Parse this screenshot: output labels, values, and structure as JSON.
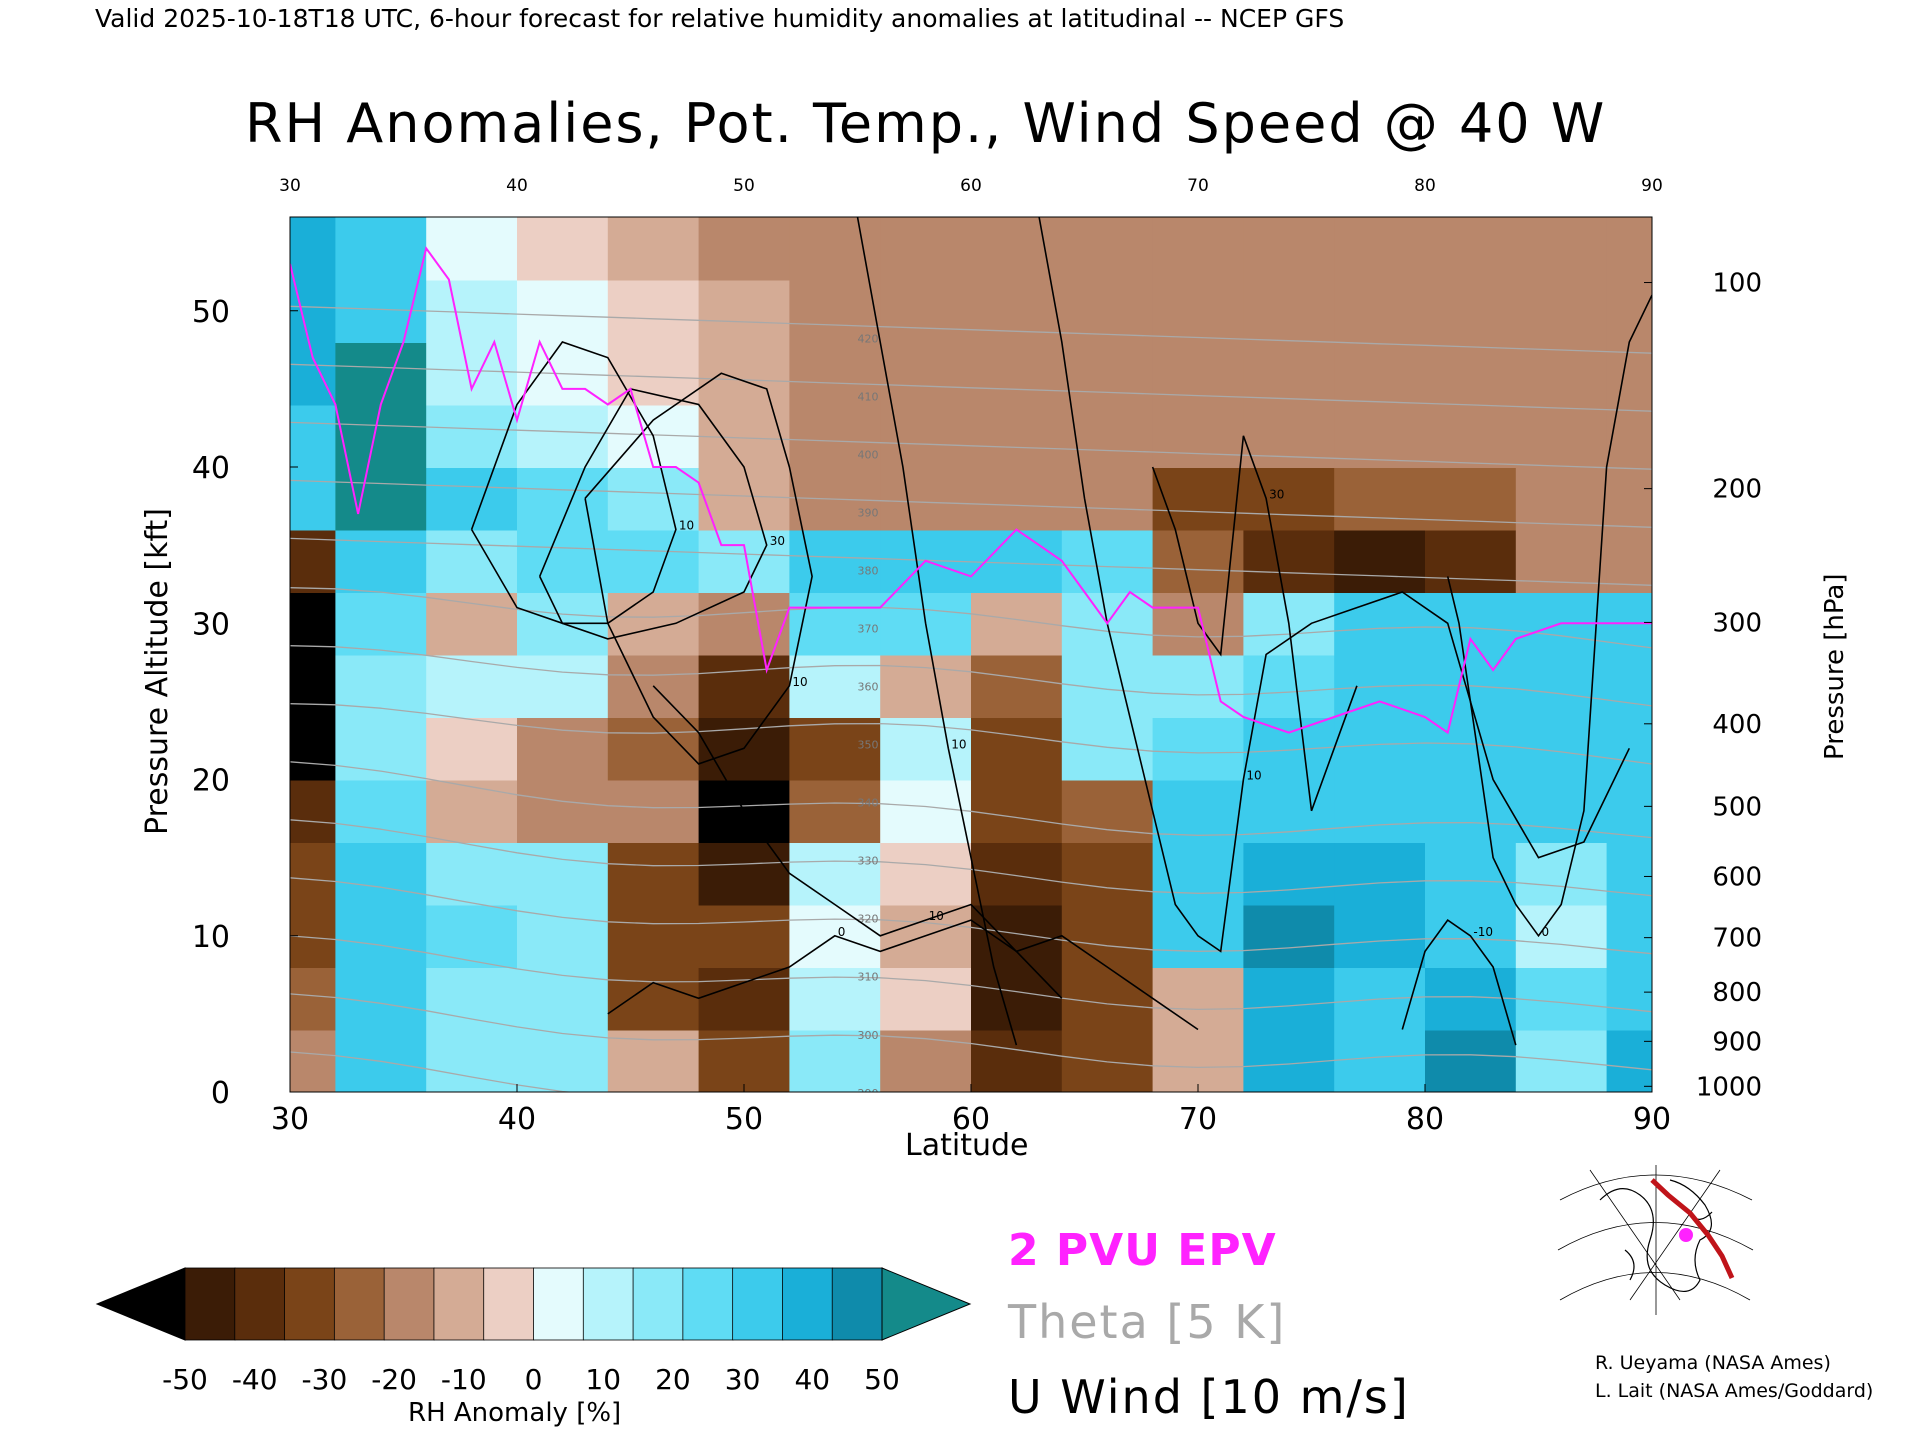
{
  "header": "Valid 2025-10-18T18 UTC, 6-hour forecast for relative humidity anomalies at latitudinal -- NCEP GFS",
  "colors": {
    "epv": "#ff22ff",
    "theta": "#a9a9a9",
    "wind": "#000000",
    "rh_scale": [
      "#000000",
      "#3b1c06",
      "#5a2d0c",
      "#7a4418",
      "#9a6238",
      "#b9876b",
      "#d4ab95",
      "#eccfc4",
      "#e4fbfd",
      "#b6f3fb",
      "#8ae9f8",
      "#5fdcf4",
      "#3ccbec",
      "#1aafd8",
      "#0f8bab",
      "#148a8a"
    ]
  },
  "chart_data": {
    "type": "heatmap",
    "title": "RH Anomalies, Pot. Temp., Wind Speed @ 40 W",
    "xlabel": "Latitude",
    "ylabel": "Pressure Altitude [kft]",
    "ylabel_right": "Pressure [hPa]",
    "xlim": [
      30,
      90
    ],
    "ylim": [
      0,
      56
    ],
    "x_ticks": [
      "30",
      "40",
      "50",
      "60",
      "70",
      "80",
      "90"
    ],
    "x_tick_values": [
      30,
      40,
      50,
      60,
      70,
      80,
      90
    ],
    "y_ticks": [
      "0",
      "10",
      "20",
      "30",
      "40",
      "50"
    ],
    "y_tick_values": [
      0,
      10,
      20,
      30,
      40,
      50
    ],
    "pressure_ticks": [
      "1000",
      "900",
      "800",
      "700",
      "600",
      "500",
      "400",
      "300",
      "200",
      "100"
    ],
    "pressure_tick_values": [
      1000,
      900,
      800,
      700,
      600,
      500,
      400,
      300,
      200,
      100
    ],
    "rh_anomaly_grid": {
      "lat": [
        30,
        34,
        38,
        42,
        46,
        50,
        54,
        58,
        62,
        66,
        70,
        74,
        78,
        82,
        86,
        90
      ],
      "kft": [
        2,
        6,
        10,
        14,
        18,
        22,
        26,
        30,
        34,
        38,
        42,
        46,
        50,
        54
      ],
      "values": [
        [
          -20,
          30,
          20,
          15,
          -10,
          -30,
          15,
          -15,
          -40,
          -30,
          -10,
          40,
          30,
          45,
          20,
          40
        ],
        [
          -25,
          30,
          20,
          15,
          -35,
          -40,
          10,
          -5,
          -45,
          -35,
          -10,
          40,
          35,
          40,
          25,
          35
        ],
        [
          -30,
          30,
          25,
          20,
          -35,
          -35,
          5,
          -10,
          -45,
          -35,
          30,
          45,
          40,
          35,
          10,
          30
        ],
        [
          -30,
          30,
          20,
          20,
          -30,
          -45,
          10,
          -5,
          -40,
          -30,
          30,
          40,
          40,
          35,
          20,
          30
        ],
        [
          -40,
          25,
          -10,
          -15,
          -20,
          -50,
          -25,
          0,
          -35,
          -25,
          30,
          35,
          35,
          30,
          30,
          30
        ],
        [
          -50,
          20,
          -5,
          -15,
          -25,
          -45,
          -30,
          10,
          -30,
          20,
          25,
          30,
          30,
          30,
          30,
          30
        ],
        [
          -50,
          20,
          10,
          10,
          -15,
          -40,
          10,
          -10,
          -25,
          15,
          20,
          25,
          30,
          30,
          30,
          30
        ],
        [
          -50,
          25,
          -10,
          15,
          -10,
          -20,
          25,
          25,
          -10,
          20,
          -20,
          20,
          30,
          30,
          30,
          30
        ],
        [
          -40,
          30,
          20,
          25,
          25,
          20,
          30,
          30,
          30,
          25,
          -25,
          -40,
          -45,
          -40,
          -20,
          -20
        ],
        [
          30,
          50,
          30,
          25,
          20,
          -10,
          -20,
          -20,
          -20,
          -20,
          -30,
          -30,
          -25,
          -25,
          -20,
          -20
        ],
        [
          30,
          50,
          20,
          10,
          5,
          -10,
          -15,
          -15,
          -15,
          -15,
          -15,
          -15,
          -15,
          -15,
          -15,
          -15
        ],
        [
          40,
          50,
          10,
          5,
          -5,
          -10,
          -15,
          -15,
          -15,
          -15,
          -15,
          -15,
          -15,
          -15,
          -15,
          -15
        ],
        [
          40,
          35,
          10,
          0,
          -5,
          -10,
          -15,
          -15,
          -15,
          -15,
          -15,
          -15,
          -15,
          -15,
          -15,
          -15
        ],
        [
          40,
          30,
          5,
          -5,
          -10,
          -15,
          -15,
          -15,
          -15,
          -15,
          -15,
          -15,
          -15,
          -15,
          -15,
          -15
        ]
      ]
    },
    "epv_2pvu_line": {
      "lat": [
        30,
        31,
        32,
        33,
        34,
        35,
        36,
        37,
        38,
        39,
        40,
        41,
        42,
        43,
        44,
        45,
        46,
        47,
        48,
        49,
        50,
        51,
        52,
        53,
        54,
        56,
        58,
        60,
        62,
        63,
        64,
        65,
        66,
        67,
        68,
        69,
        70,
        71,
        72,
        74,
        76,
        78,
        80,
        81,
        82,
        83,
        84,
        86,
        88,
        90
      ],
      "kft": [
        53,
        47,
        44,
        37,
        44,
        48,
        54,
        52,
        45,
        48,
        43,
        48,
        45,
        45,
        44,
        45,
        40,
        40,
        39,
        35,
        35,
        27,
        31,
        31,
        31,
        31,
        34,
        33,
        36,
        35,
        34,
        32,
        30,
        32,
        31,
        31,
        31,
        25,
        24,
        23,
        24,
        25,
        24,
        23,
        29,
        27,
        29,
        30,
        30,
        30
      ]
    },
    "u_wind_contours": [
      {
        "label": "10",
        "lat": [
          38,
          40,
          42,
          44,
          46,
          47,
          46,
          44,
          42,
          40,
          38
        ],
        "kft": [
          36,
          44,
          48,
          47,
          42,
          36,
          32,
          30,
          30,
          31,
          36
        ]
      },
      {
        "label": "10",
        "lat": [
          43,
          46,
          49,
          51,
          52,
          53,
          52,
          50,
          48,
          46,
          44,
          43
        ],
        "kft": [
          38,
          43,
          46,
          45,
          40,
          33,
          26,
          22,
          21,
          24,
          30,
          38
        ]
      },
      {
        "label": "30",
        "lat": [
          41,
          43,
          45,
          48,
          50,
          51,
          50,
          47,
          44,
          42,
          41
        ],
        "kft": [
          33,
          40,
          45,
          44,
          40,
          35,
          32,
          30,
          29,
          30,
          33
        ]
      },
      {
        "label": "10",
        "lat": [
          46,
          48,
          50,
          52,
          54,
          56,
          58,
          60,
          62,
          64,
          66,
          68,
          70
        ],
        "kft": [
          26,
          23,
          18,
          14,
          12,
          10,
          11,
          12,
          9,
          10,
          8,
          6,
          4
        ]
      },
      {
        "label": "0",
        "lat": [
          44,
          46,
          48,
          50,
          52,
          54,
          56,
          58,
          60,
          62,
          64
        ],
        "kft": [
          5,
          7,
          6,
          7,
          8,
          10,
          9,
          10,
          11,
          9,
          6
        ]
      },
      {
        "label": "10",
        "lat": [
          55,
          56,
          57,
          58,
          59,
          60,
          61,
          62
        ],
        "kft": [
          56,
          48,
          40,
          30,
          22,
          15,
          8,
          3
        ]
      },
      {
        "label": "10",
        "lat": [
          63,
          64,
          65,
          66,
          67,
          68,
          69,
          70,
          71,
          72,
          73,
          75,
          77,
          79,
          81,
          83,
          85,
          87,
          89
        ],
        "kft": [
          56,
          48,
          38,
          30,
          24,
          18,
          12,
          10,
          9,
          20,
          28,
          30,
          31,
          32,
          30,
          20,
          15,
          16,
          22
        ]
      },
      {
        "label": "30",
        "lat": [
          68,
          69,
          70,
          71,
          72,
          73,
          74,
          75,
          76,
          77
        ],
        "kft": [
          40,
          36,
          30,
          28,
          42,
          38,
          30,
          18,
          22,
          26
        ]
      },
      {
        "label": "0",
        "lat": [
          81,
          81.5,
          82,
          82.5,
          83,
          84,
          85,
          86,
          87,
          88,
          89,
          90
        ],
        "kft": [
          33,
          30,
          25,
          20,
          15,
          12,
          10,
          12,
          18,
          40,
          48,
          51
        ]
      },
      {
        "label": "-10",
        "lat": [
          79,
          80,
          81,
          82,
          83,
          84
        ],
        "kft": [
          4,
          9,
          11,
          10,
          8,
          3
        ]
      }
    ],
    "theta_contours": {
      "levels": [
        "290",
        "300",
        "310",
        "320",
        "330",
        "340",
        "350",
        "360",
        "370",
        "380",
        "390",
        "400",
        "410",
        "420"
      ],
      "level_values": [
        290,
        300,
        310,
        320,
        330,
        340,
        350,
        360,
        370,
        380,
        390,
        400,
        410,
        420
      ]
    },
    "colorbar": {
      "label": "RH Anomaly [%]",
      "ticks": [
        "-50",
        "-40",
        "-30",
        "-20",
        "-10",
        "0",
        "10",
        "20",
        "30",
        "40",
        "50"
      ],
      "tick_values": [
        -50,
        -40,
        -30,
        -20,
        -10,
        0,
        10,
        20,
        30,
        40,
        50
      ]
    },
    "legend": {
      "epv": "2 PVU EPV",
      "theta": "Theta [5 K]",
      "wind": "U Wind [10 m/s]"
    }
  },
  "credits": [
    "R. Ueyama (NASA Ames)",
    "L. Lait (NASA Ames/Goddard)"
  ]
}
